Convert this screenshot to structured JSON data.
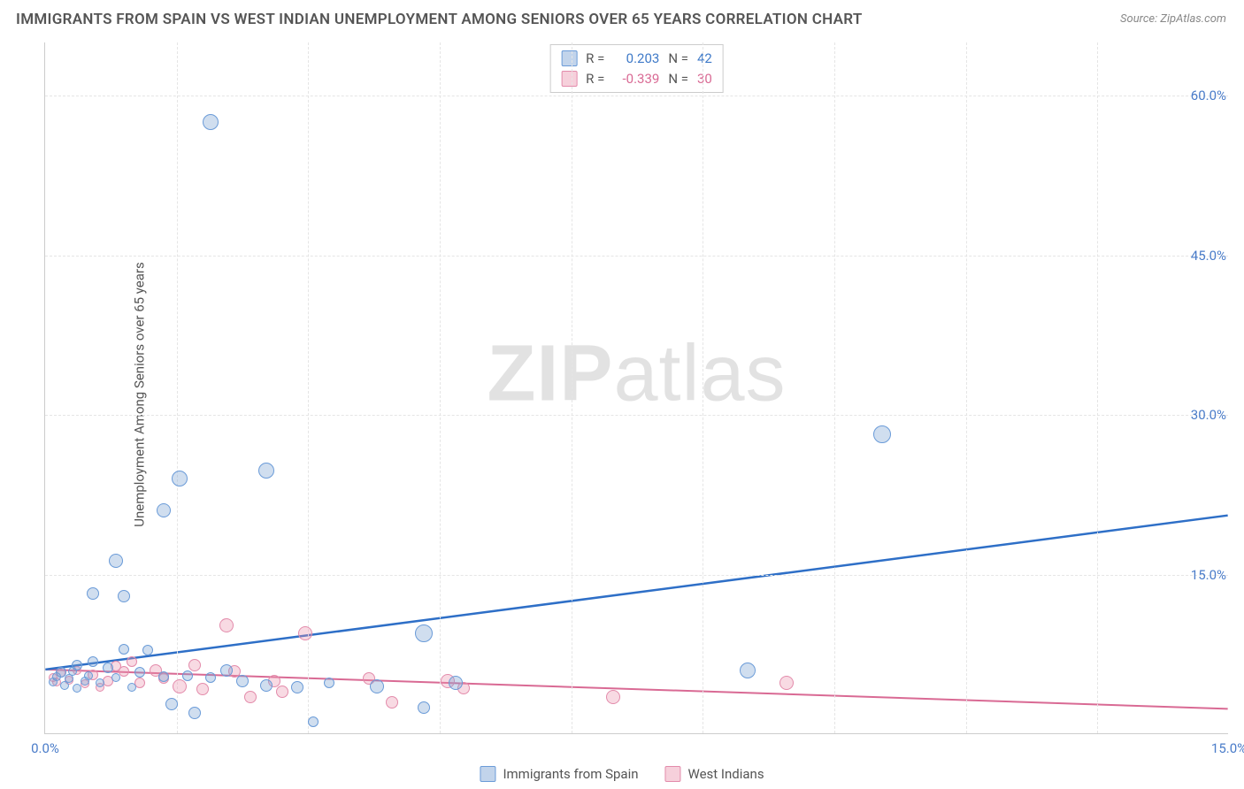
{
  "title": "IMMIGRANTS FROM SPAIN VS WEST INDIAN UNEMPLOYMENT AMONG SENIORS OVER 65 YEARS CORRELATION CHART",
  "source": "Source: ZipAtlas.com",
  "ylabel": "Unemployment Among Seniors over 65 years",
  "watermark_bold": "ZIP",
  "watermark_light": "atlas",
  "chart": {
    "type": "scatter",
    "xlim": [
      0,
      15
    ],
    "ylim": [
      0,
      65
    ],
    "xticks": [
      {
        "v": 0,
        "l": "0.0%"
      },
      {
        "v": 15,
        "l": "15.0%"
      }
    ],
    "yticks": [
      {
        "v": 15,
        "l": "15.0%"
      },
      {
        "v": 30,
        "l": "30.0%"
      },
      {
        "v": 45,
        "l": "45.0%"
      },
      {
        "v": 60,
        "l": "60.0%"
      }
    ],
    "xgrid": [
      1.67,
      3.33,
      5.0,
      6.67,
      8.33,
      10.0,
      11.67,
      13.33
    ],
    "ygrid": [
      15,
      30,
      45,
      60
    ],
    "background_color": "#ffffff",
    "grid_color": "#e5e5e5",
    "series_blue": {
      "name": "Immigrants from Spain",
      "color_fill": "rgba(120,160,210,0.35)",
      "color_stroke": "#6a9bd8",
      "r_value": "0.203",
      "n_value": "42",
      "trend": {
        "x1": 0,
        "y1": 6.0,
        "x2": 15,
        "y2": 20.5,
        "color": "#2e6fc7",
        "width": 2.5
      },
      "points": [
        {
          "x": 2.1,
          "y": 57.5,
          "s": 18
        },
        {
          "x": 2.8,
          "y": 24.8,
          "s": 18
        },
        {
          "x": 1.7,
          "y": 24.0,
          "s": 18
        },
        {
          "x": 1.5,
          "y": 21.0,
          "s": 16
        },
        {
          "x": 10.6,
          "y": 28.2,
          "s": 20
        },
        {
          "x": 0.9,
          "y": 16.3,
          "s": 16
        },
        {
          "x": 0.6,
          "y": 13.2,
          "s": 14
        },
        {
          "x": 1.0,
          "y": 13.0,
          "s": 14
        },
        {
          "x": 4.8,
          "y": 9.5,
          "s": 20
        },
        {
          "x": 8.9,
          "y": 6.0,
          "s": 18
        },
        {
          "x": 0.4,
          "y": 6.5,
          "s": 12
        },
        {
          "x": 0.2,
          "y": 5.8,
          "s": 12
        },
        {
          "x": 0.3,
          "y": 5.2,
          "s": 10
        },
        {
          "x": 0.5,
          "y": 5.0,
          "s": 10
        },
        {
          "x": 0.8,
          "y": 6.2,
          "s": 12
        },
        {
          "x": 1.0,
          "y": 8.0,
          "s": 12
        },
        {
          "x": 1.2,
          "y": 5.8,
          "s": 12
        },
        {
          "x": 1.3,
          "y": 7.9,
          "s": 12
        },
        {
          "x": 1.5,
          "y": 5.4,
          "s": 12
        },
        {
          "x": 1.6,
          "y": 2.8,
          "s": 14
        },
        {
          "x": 1.8,
          "y": 5.5,
          "s": 12
        },
        {
          "x": 1.9,
          "y": 2.0,
          "s": 14
        },
        {
          "x": 2.1,
          "y": 5.3,
          "s": 12
        },
        {
          "x": 2.3,
          "y": 6.0,
          "s": 14
        },
        {
          "x": 2.5,
          "y": 5.0,
          "s": 14
        },
        {
          "x": 2.8,
          "y": 4.6,
          "s": 14
        },
        {
          "x": 3.2,
          "y": 4.4,
          "s": 14
        },
        {
          "x": 3.4,
          "y": 1.2,
          "s": 12
        },
        {
          "x": 3.6,
          "y": 4.8,
          "s": 12
        },
        {
          "x": 4.2,
          "y": 4.5,
          "s": 16
        },
        {
          "x": 4.8,
          "y": 2.5,
          "s": 14
        },
        {
          "x": 5.2,
          "y": 4.8,
          "s": 16
        },
        {
          "x": 0.1,
          "y": 4.9,
          "s": 10
        },
        {
          "x": 0.15,
          "y": 5.4,
          "s": 10
        },
        {
          "x": 0.25,
          "y": 4.6,
          "s": 10
        },
        {
          "x": 0.35,
          "y": 5.9,
          "s": 10
        },
        {
          "x": 0.4,
          "y": 4.3,
          "s": 10
        },
        {
          "x": 0.55,
          "y": 5.5,
          "s": 10
        },
        {
          "x": 0.7,
          "y": 4.8,
          "s": 10
        },
        {
          "x": 0.9,
          "y": 5.3,
          "s": 10
        },
        {
          "x": 1.1,
          "y": 4.4,
          "s": 10
        },
        {
          "x": 0.6,
          "y": 6.8,
          "s": 12
        }
      ]
    },
    "series_pink": {
      "name": "West Indians",
      "color_fill": "rgba(235,150,175,0.35)",
      "color_stroke": "#e38bab",
      "r_value": "-0.339",
      "n_value": "30",
      "trend": {
        "x1": 0,
        "y1": 6.0,
        "x2": 15,
        "y2": 2.3,
        "color": "#d96a94",
        "width": 2
      },
      "points": [
        {
          "x": 2.3,
          "y": 10.2,
          "s": 16
        },
        {
          "x": 3.3,
          "y": 9.5,
          "s": 16
        },
        {
          "x": 7.2,
          "y": 3.5,
          "s": 16
        },
        {
          "x": 9.4,
          "y": 4.8,
          "s": 16
        },
        {
          "x": 4.4,
          "y": 3.0,
          "s": 14
        },
        {
          "x": 4.1,
          "y": 5.2,
          "s": 14
        },
        {
          "x": 3.0,
          "y": 4.0,
          "s": 14
        },
        {
          "x": 2.6,
          "y": 3.5,
          "s": 14
        },
        {
          "x": 1.9,
          "y": 6.5,
          "s": 14
        },
        {
          "x": 1.7,
          "y": 4.5,
          "s": 16
        },
        {
          "x": 1.4,
          "y": 6.0,
          "s": 14
        },
        {
          "x": 1.2,
          "y": 4.8,
          "s": 12
        },
        {
          "x": 1.0,
          "y": 5.9,
          "s": 12
        },
        {
          "x": 0.8,
          "y": 5.0,
          "s": 12
        },
        {
          "x": 0.6,
          "y": 5.6,
          "s": 12
        },
        {
          "x": 0.5,
          "y": 4.7,
          "s": 10
        },
        {
          "x": 0.4,
          "y": 6.0,
          "s": 10
        },
        {
          "x": 0.3,
          "y": 5.1,
          "s": 10
        },
        {
          "x": 0.2,
          "y": 5.7,
          "s": 10
        },
        {
          "x": 0.15,
          "y": 4.9,
          "s": 10
        },
        {
          "x": 0.1,
          "y": 5.3,
          "s": 10
        },
        {
          "x": 2.0,
          "y": 4.2,
          "s": 14
        },
        {
          "x": 2.4,
          "y": 5.9,
          "s": 14
        },
        {
          "x": 5.1,
          "y": 5.0,
          "s": 16
        },
        {
          "x": 5.3,
          "y": 4.3,
          "s": 14
        },
        {
          "x": 0.9,
          "y": 6.4,
          "s": 12
        },
        {
          "x": 1.5,
          "y": 5.2,
          "s": 12
        },
        {
          "x": 2.9,
          "y": 5.0,
          "s": 14
        },
        {
          "x": 0.7,
          "y": 4.4,
          "s": 10
        },
        {
          "x": 1.1,
          "y": 6.8,
          "s": 12
        }
      ]
    }
  },
  "legend": {
    "blue": "Immigrants from Spain",
    "pink": "West Indians"
  },
  "stats_labels": {
    "R": "R =",
    "N": "N ="
  }
}
